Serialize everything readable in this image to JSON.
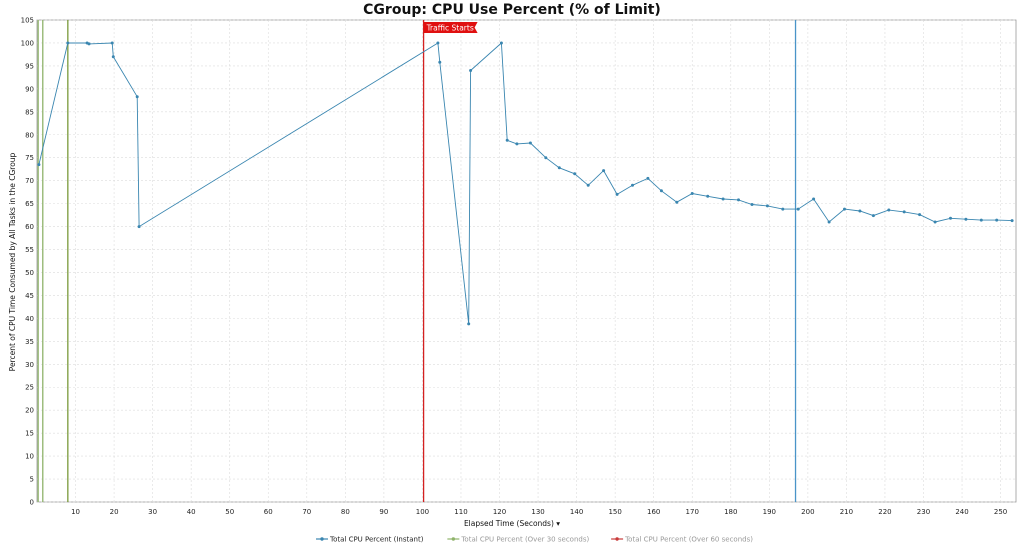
{
  "chart_data": {
    "type": "line",
    "title": "CGroup: CPU Use Percent (% of Limit)",
    "xlabel": "Elapsed Time (Seconds)",
    "xlabel_suffix": "▾",
    "ylabel": "Percent of CPU Time Consumed by All Tasks in the CGroup",
    "xlim": [
      0,
      254
    ],
    "ylim": [
      0,
      105
    ],
    "x_ticks": [
      10,
      20,
      30,
      40,
      50,
      60,
      70,
      80,
      90,
      100,
      110,
      120,
      130,
      140,
      150,
      160,
      170,
      180,
      190,
      200,
      210,
      220,
      230,
      240,
      250
    ],
    "y_ticks": [
      0,
      5,
      10,
      15,
      20,
      25,
      30,
      35,
      40,
      45,
      50,
      55,
      60,
      65,
      70,
      75,
      80,
      85,
      90,
      95,
      100,
      105
    ],
    "grid": true,
    "legend_position": "bottom",
    "series": [
      {
        "name": "Total CPU Percent (Instant)",
        "color": "#3a86b0",
        "points": [
          [
            0.5,
            73.5
          ],
          [
            8,
            100
          ],
          [
            13,
            100
          ],
          [
            13.5,
            99.8
          ],
          [
            19.5,
            100
          ],
          [
            19.8,
            97
          ],
          [
            26,
            88.3
          ],
          [
            26.5,
            60
          ],
          [
            104,
            100
          ],
          [
            104.5,
            95.8
          ],
          [
            112,
            38.8
          ],
          [
            112.5,
            94
          ],
          [
            120.5,
            100
          ],
          [
            122,
            78.8
          ],
          [
            124.5,
            78
          ],
          [
            128,
            78.2
          ],
          [
            132,
            75
          ],
          [
            135.5,
            72.8
          ],
          [
            139.5,
            71.5
          ],
          [
            143,
            69
          ],
          [
            147,
            72.2
          ],
          [
            150.5,
            67
          ],
          [
            154.5,
            69
          ],
          [
            158.5,
            70.5
          ],
          [
            162,
            67.8
          ],
          [
            166,
            65.3
          ],
          [
            170,
            67.2
          ],
          [
            174,
            66.6
          ],
          [
            178,
            66
          ],
          [
            182,
            65.8
          ],
          [
            185.5,
            64.8
          ],
          [
            189.5,
            64.5
          ],
          [
            193.5,
            63.8
          ],
          [
            197.5,
            63.8
          ],
          [
            201.5,
            66
          ],
          [
            205.5,
            61
          ],
          [
            209.5,
            63.8
          ],
          [
            213.5,
            63.4
          ],
          [
            217,
            62.4
          ],
          [
            221,
            63.6
          ],
          [
            225,
            63.2
          ],
          [
            229,
            62.6
          ],
          [
            233,
            61
          ],
          [
            237,
            61.8
          ],
          [
            241,
            61.6
          ],
          [
            245,
            61.4
          ],
          [
            249,
            61.4
          ],
          [
            253,
            61.3
          ]
        ]
      },
      {
        "name": "Total CPU Percent (Over 30 seconds)",
        "color": "#8fb36a",
        "points": []
      },
      {
        "name": "Total CPU Percent (Over 60 seconds)",
        "color": "#c83a3a",
        "points": []
      }
    ],
    "markers": [
      {
        "x": 0.3,
        "color": "#8fb36a"
      },
      {
        "x": 1.5,
        "color": "#8fb36a"
      },
      {
        "x": 8,
        "color": "#7a9a3a"
      },
      {
        "x": 100.3,
        "color": "#d42020"
      },
      {
        "x": 196.8,
        "color": "#4a94c8"
      }
    ],
    "annotation": {
      "text": "Traffic Starts",
      "x": 100.3,
      "color": "#e01010"
    }
  }
}
